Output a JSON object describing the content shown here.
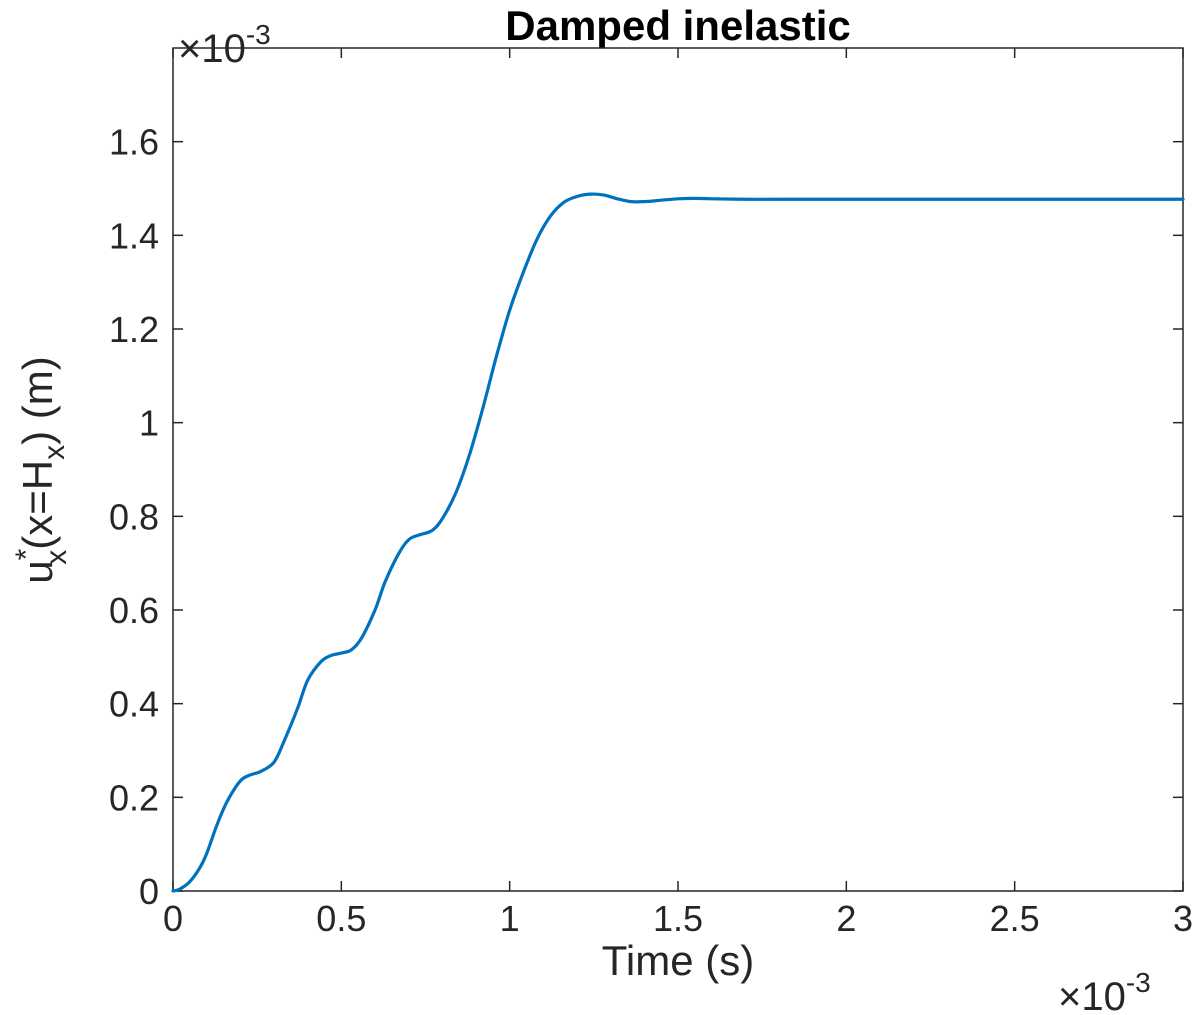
{
  "chart_data": {
    "type": "line",
    "title": "Damped inelastic",
    "xlabel": "Time (s)",
    "ylabel": {
      "main": "u",
      "sup": "*",
      "sub": "x",
      "mid": "(x=H",
      "sub2": "x",
      "tail": ") (m)"
    },
    "x_multiplier": {
      "prefix": "×10",
      "exp": "-3"
    },
    "y_multiplier": {
      "prefix": "×10",
      "exp": "-3"
    },
    "xlim": [
      0,
      3
    ],
    "ylim": [
      0,
      1.8
    ],
    "xticks": [
      0,
      0.5,
      1,
      1.5,
      2,
      2.5,
      3
    ],
    "xtick_labels": [
      "0",
      "0.5",
      "1",
      "1.5",
      "2",
      "2.5",
      "3"
    ],
    "yticks": [
      0,
      0.2,
      0.4,
      0.6,
      0.8,
      1,
      1.2,
      1.4,
      1.6
    ],
    "ytick_labels": [
      "0",
      "0.2",
      "0.4",
      "0.6",
      "0.8",
      "1",
      "1.2",
      "1.4",
      "1.6"
    ],
    "grid": false,
    "series": [
      {
        "color": "#0072BD",
        "x": [
          0,
          0.02,
          0.05,
          0.08,
          0.1,
          0.13,
          0.16,
          0.2,
          0.23,
          0.26,
          0.3,
          0.33,
          0.37,
          0.4,
          0.44,
          0.47,
          0.5,
          0.53,
          0.56,
          0.6,
          0.63,
          0.67,
          0.7,
          0.73,
          0.77,
          0.8,
          0.84,
          0.88,
          0.92,
          0.96,
          1.0,
          1.04,
          1.08,
          1.12,
          1.16,
          1.2,
          1.24,
          1.28,
          1.32,
          1.36,
          1.4,
          1.45,
          1.5,
          1.55,
          1.6,
          1.7,
          1.8,
          2.0,
          2.2,
          2.5,
          2.8,
          3.0
        ],
        "y": [
          0,
          0.004,
          0.02,
          0.05,
          0.08,
          0.14,
          0.19,
          0.235,
          0.248,
          0.255,
          0.275,
          0.32,
          0.39,
          0.45,
          0.49,
          0.503,
          0.508,
          0.515,
          0.54,
          0.6,
          0.66,
          0.72,
          0.75,
          0.76,
          0.77,
          0.795,
          0.85,
          0.93,
          1.03,
          1.14,
          1.24,
          1.32,
          1.39,
          1.44,
          1.47,
          1.483,
          1.488,
          1.486,
          1.478,
          1.472,
          1.472,
          1.475,
          1.478,
          1.479,
          1.478,
          1.477,
          1.477,
          1.477,
          1.477,
          1.477,
          1.477,
          1.477
        ]
      }
    ]
  }
}
